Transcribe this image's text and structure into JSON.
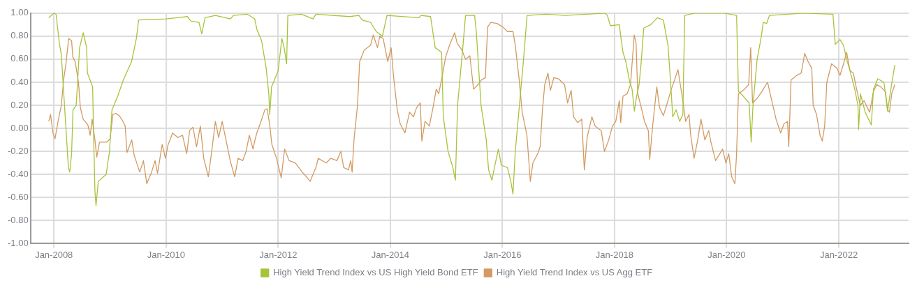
{
  "chart_data": {
    "type": "line",
    "x": [
      "2007-11-28",
      "2008-01-01",
      "2008-01-15",
      "2008-02-05",
      "2008-02-18",
      "2008-03-05",
      "2008-03-20",
      "2008-04-04",
      "2008-04-13",
      "2008-04-25",
      "2008-05-04",
      "2008-05-25",
      "2008-06-16",
      "2008-07-10",
      "2008-08-01",
      "2008-08-06",
      "2008-09-09",
      "2008-09-16",
      "2008-09-24",
      "2008-10-01",
      "2008-10-16",
      "2008-12-06",
      "2008-12-28",
      "2009-01-13",
      "2009-02-20",
      "2009-03-28",
      "2009-05-21",
      "2009-06-21",
      "2009-07-06",
      "2010-01-01",
      "2010-05-19",
      "2010-06-12",
      "2010-08-03",
      "2010-08-21",
      "2010-09-12",
      "2010-11-18",
      "2011-02-24",
      "2011-03-15",
      "2011-06-15",
      "2011-08-01",
      "2011-08-15",
      "2011-09-15",
      "2011-10-15",
      "2011-11-01",
      "2011-11-07",
      "2011-11-19",
      "2012-01-01",
      "2012-01-25",
      "2012-02-09",
      "2012-02-25",
      "2012-03-04",
      "2012-06-01",
      "2012-08-15",
      "2012-09-03",
      "2013-04-10",
      "2013-06-10",
      "2013-07-01",
      "2013-08-25",
      "2013-10-01",
      "2013-11-10",
      "2013-12-10",
      "2014-07-06",
      "2014-07-20",
      "2014-09-20",
      "2014-10-20",
      "2014-12-01",
      "2014-12-12",
      "2015-01-12",
      "2015-02-12",
      "2015-03-01",
      "2015-03-15",
      "2015-04-18",
      "2015-05-06",
      "2015-07-04",
      "2015-07-15",
      "2015-08-15",
      "2015-09-18",
      "2015-10-03",
      "2015-10-25",
      "2015-11-10",
      "2015-12-06",
      "2015-12-25",
      "2016-02-03",
      "2016-02-25",
      "2016-03-10",
      "2016-03-25",
      "2016-04-25",
      "2016-05-18",
      "2016-06-10",
      "2016-10-15",
      "2017-02-15",
      "2017-11-01",
      "2017-11-15",
      "2017-12-05",
      "2018-02-01",
      "2018-02-10",
      "2018-02-25",
      "2018-03-15",
      "2018-04-10",
      "2018-04-25",
      "2018-05-10",
      "2018-05-25",
      "2018-06-10",
      "2018-06-25",
      "2018-07-10",
      "2018-08-25",
      "2018-10-07",
      "2018-11-15",
      "2018-12-15",
      "2019-01-01",
      "2019-01-15",
      "2019-02-06",
      "2019-03-01",
      "2019-03-22",
      "2019-04-03",
      "2019-06-06",
      "2019-12-20",
      "2020-03-06",
      "2020-03-18",
      "2020-04-18",
      "2020-05-27",
      "2020-06-09",
      "2020-06-21",
      "2020-07-18",
      "2020-08-12",
      "2020-08-27",
      "2020-09-18",
      "2020-10-06",
      "2021-05-15",
      "2021-11-24",
      "2021-12-09",
      "2022-01-09",
      "2022-02-01",
      "2022-02-21",
      "2022-03-15",
      "2022-04-15",
      "2022-05-06",
      "2022-05-10",
      "2022-05-22",
      "2022-06-22",
      "2022-08-01",
      "2022-08-15",
      "2022-09-12",
      "2022-10-22",
      "2022-11-15",
      "2022-12-06",
      "2023-01-01"
    ],
    "series": [
      {
        "name": "High Yield Trend Index vs US High Yield Bond ETF",
        "color": "#a6c43a",
        "values": [
          0.96,
          1.0,
          0.99,
          0.74,
          0.64,
          0.3,
          -0.02,
          -0.34,
          -0.38,
          -0.22,
          0.16,
          0.2,
          0.7,
          0.83,
          0.7,
          0.48,
          0.36,
          -0.1,
          -0.54,
          -0.67,
          -0.46,
          -0.4,
          -0.2,
          0.16,
          0.28,
          0.42,
          0.58,
          0.78,
          0.94,
          0.95,
          0.97,
          0.93,
          0.92,
          0.82,
          0.96,
          0.98,
          0.95,
          0.98,
          0.99,
          0.95,
          0.86,
          0.76,
          0.52,
          0.3,
          0.12,
          0.36,
          0.5,
          0.78,
          0.7,
          0.56,
          0.98,
          0.99,
          0.95,
          0.99,
          0.97,
          0.98,
          0.94,
          0.92,
          0.84,
          0.8,
          0.98,
          0.96,
          0.98,
          0.97,
          0.7,
          0.66,
          0.1,
          -0.2,
          -0.34,
          -0.45,
          0.2,
          0.7,
          0.98,
          0.98,
          0.84,
          0.2,
          -0.1,
          -0.36,
          -0.45,
          -0.34,
          -0.18,
          -0.32,
          -0.34,
          -0.46,
          -0.57,
          -0.2,
          0.26,
          0.6,
          0.98,
          0.99,
          0.98,
          1.0,
          0.98,
          0.89,
          0.9,
          0.8,
          0.66,
          0.58,
          0.4,
          0.34,
          0.15,
          0.28,
          0.38,
          0.6,
          0.87,
          0.9,
          0.96,
          0.94,
          0.72,
          0.4,
          0.1,
          0.16,
          0.06,
          0.12,
          0.98,
          1.0,
          1.0,
          0.98,
          0.32,
          0.28,
          0.22,
          -0.12,
          0.2,
          0.6,
          0.78,
          0.92,
          0.91,
          0.98,
          1.0,
          0.99,
          0.73,
          0.77,
          0.72,
          0.6,
          0.5,
          0.34,
          0.2,
          -0.01,
          0.3,
          0.14,
          0.03,
          0.34,
          0.43,
          0.4,
          0.15,
          0.34,
          0.55
        ]
      },
      {
        "name": "High Yield Trend Index vs US Agg ETF",
        "color": "#d39a62",
        "x": [
          "2007-11-28",
          "2007-12-10",
          "2007-12-25",
          "2008-01-08",
          "2008-01-25",
          "2008-02-18",
          "2008-03-04",
          "2008-03-19",
          "2008-04-06",
          "2008-04-25",
          "2008-05-03",
          "2008-05-18",
          "2008-06-09",
          "2008-06-21",
          "2008-07-09",
          "2008-08-09",
          "2008-08-24",
          "2008-09-06",
          "2008-09-24",
          "2008-10-06",
          "2008-10-24",
          "2008-12-09",
          "2009-01-01",
          "2009-01-19",
          "2009-02-07",
          "2009-03-01",
          "2009-03-22",
          "2009-04-09",
          "2009-04-21",
          "2009-05-22",
          "2009-06-06",
          "2009-07-13",
          "2009-08-06",
          "2009-08-28",
          "2009-09-28",
          "2009-10-21",
          "2009-11-06",
          "2009-12-06",
          "2009-12-28",
          "2010-01-12",
          "2010-02-12",
          "2010-03-18",
          "2010-04-18",
          "2010-05-15",
          "2010-06-03",
          "2010-06-25",
          "2010-07-18",
          "2010-08-12",
          "2010-09-03",
          "2010-10-03",
          "2010-10-25",
          "2010-11-18",
          "2010-12-09",
          "2011-01-01",
          "2011-02-01",
          "2011-02-24",
          "2011-03-24",
          "2011-04-15",
          "2011-05-15",
          "2011-06-06",
          "2011-06-27",
          "2011-07-21",
          "2011-08-03",
          "2011-08-15",
          "2011-09-06",
          "2011-10-06",
          "2011-10-21",
          "2011-11-06",
          "2011-11-21",
          "2011-12-21",
          "2012-01-21",
          "2012-02-12",
          "2012-03-12",
          "2012-04-21",
          "2012-06-06",
          "2012-07-03",
          "2012-07-27",
          "2012-09-03",
          "2012-09-18",
          "2012-11-09",
          "2012-12-09",
          "2013-01-18",
          "2013-02-12",
          "2013-03-03",
          "2013-04-03",
          "2013-04-18",
          "2013-04-27",
          "2013-05-09",
          "2013-06-01",
          "2013-06-15",
          "2013-07-15",
          "2013-08-25",
          "2013-09-12",
          "2013-10-09",
          "2013-10-24",
          "2013-11-15",
          "2013-12-15",
          "2014-01-06",
          "2014-01-21",
          "2014-02-15",
          "2014-03-06",
          "2014-04-06",
          "2014-05-06",
          "2014-06-01",
          "2014-06-21",
          "2014-07-15",
          "2014-07-25",
          "2014-08-15",
          "2014-09-12",
          "2014-10-06",
          "2014-10-27",
          "2014-11-12",
          "2014-12-06",
          "2014-12-27",
          "2015-01-27",
          "2015-02-24",
          "2015-03-12",
          "2015-04-12",
          "2015-05-06",
          "2015-06-03",
          "2015-06-27",
          "2015-07-27",
          "2015-08-18",
          "2015-09-12",
          "2015-09-27",
          "2015-10-18",
          "2015-11-27",
          "2016-01-03",
          "2016-02-03",
          "2016-03-10",
          "2016-03-25",
          "2016-04-18",
          "2016-05-09",
          "2016-06-09",
          "2016-07-01",
          "2016-07-18",
          "2016-08-18",
          "2016-09-03",
          "2016-09-18",
          "2016-10-03",
          "2016-10-24",
          "2016-11-09",
          "2016-12-01",
          "2017-01-01",
          "2017-02-09",
          "2017-03-01",
          "2017-03-24",
          "2017-04-09",
          "2017-05-06",
          "2017-06-01",
          "2017-06-18",
          "2017-07-06",
          "2017-08-06",
          "2017-08-27",
          "2017-10-06",
          "2017-10-27",
          "2017-11-24",
          "2017-12-18",
          "2018-01-09",
          "2018-02-01",
          "2018-02-10",
          "2018-02-25",
          "2018-03-24",
          "2018-04-15",
          "2018-05-09",
          "2018-05-21",
          "2018-06-01",
          "2018-06-24",
          "2018-07-15",
          "2018-08-09",
          "2018-08-18",
          "2018-09-06",
          "2018-10-03",
          "2018-10-21",
          "2018-11-15",
          "2018-12-06",
          "2019-01-06",
          "2019-02-01",
          "2019-02-18",
          "2019-03-03",
          "2019-03-24",
          "2019-04-09",
          "2019-05-01",
          "2019-05-12",
          "2019-06-03",
          "2019-06-27",
          "2019-07-18",
          "2019-08-12",
          "2019-09-06",
          "2019-09-21",
          "2019-10-21",
          "2019-12-06",
          "2019-12-27",
          "2020-01-15",
          "2020-02-03",
          "2020-02-24",
          "2020-03-06",
          "2020-03-18",
          "2020-04-27",
          "2020-05-24",
          "2020-06-06",
          "2020-06-18",
          "2020-07-18",
          "2020-08-18",
          "2020-09-24",
          "2020-10-18",
          "2020-11-18",
          "2020-12-18",
          "2021-01-09",
          "2021-02-01",
          "2021-02-09",
          "2021-02-24",
          "2021-04-03",
          "2021-05-01",
          "2021-05-24",
          "2021-06-15",
          "2021-07-09",
          "2021-07-18",
          "2021-08-09",
          "2021-09-01",
          "2021-09-15",
          "2021-10-01",
          "2021-10-15",
          "2021-11-15",
          "2021-12-21",
          "2022-01-09",
          "2022-02-01",
          "2022-02-21",
          "2022-03-15",
          "2022-04-06",
          "2022-04-27",
          "2022-05-21",
          "2022-06-15",
          "2022-07-06",
          "2022-07-21",
          "2022-08-15",
          "2022-09-06",
          "2022-10-01",
          "2022-11-01",
          "2022-11-15",
          "2022-11-27",
          "2022-12-12",
          "2023-01-01"
        ],
        "values": [
          0.06,
          0.12,
          -0.04,
          -0.09,
          0.04,
          0.2,
          0.42,
          0.56,
          0.78,
          0.76,
          0.62,
          0.58,
          0.4,
          0.18,
          0.08,
          0.03,
          -0.06,
          0.08,
          -0.1,
          -0.25,
          -0.12,
          -0.12,
          -0.09,
          0.12,
          0.13,
          0.11,
          0.07,
          0.02,
          -0.21,
          -0.1,
          -0.23,
          -0.38,
          -0.28,
          -0.48,
          -0.38,
          -0.28,
          -0.39,
          -0.14,
          -0.26,
          -0.15,
          -0.04,
          -0.08,
          -0.06,
          -0.22,
          -0.02,
          0.01,
          -0.16,
          0.02,
          -0.26,
          -0.42,
          -0.2,
          0.06,
          -0.08,
          0.06,
          -0.14,
          -0.29,
          -0.42,
          -0.26,
          -0.28,
          -0.2,
          -0.06,
          -0.18,
          -0.1,
          -0.04,
          0.04,
          0.16,
          0.17,
          0.04,
          -0.14,
          -0.26,
          -0.43,
          -0.18,
          -0.28,
          -0.3,
          -0.38,
          -0.42,
          -0.46,
          -0.34,
          -0.26,
          -0.3,
          -0.26,
          -0.28,
          -0.2,
          -0.34,
          -0.36,
          -0.28,
          -0.38,
          -0.1,
          0.2,
          0.58,
          0.68,
          0.72,
          0.81,
          0.7,
          0.8,
          0.78,
          0.58,
          0.7,
          0.46,
          0.16,
          0.04,
          -0.04,
          0.14,
          0.1,
          0.18,
          0.22,
          -0.11,
          0.06,
          0.02,
          0.18,
          0.34,
          0.3,
          0.46,
          0.62,
          0.74,
          0.83,
          0.74,
          0.68,
          0.6,
          0.63,
          0.34,
          0.38,
          0.42,
          0.44,
          0.88,
          0.92,
          0.91,
          0.88,
          0.84,
          0.84,
          0.72,
          0.44,
          0.14,
          -0.06,
          -0.46,
          -0.3,
          -0.22,
          -0.16,
          0.16,
          0.38,
          0.48,
          0.33,
          0.44,
          0.43,
          0.38,
          0.22,
          0.33,
          0.1,
          0.05,
          0.08,
          -0.36,
          -0.08,
          0.1,
          0.02,
          -0.02,
          -0.2,
          -0.1,
          0.02,
          0.06,
          0.24,
          0.05,
          0.28,
          0.3,
          0.38,
          0.81,
          0.74,
          0.3,
          0.18,
          0.06,
          -0.02,
          -0.27,
          0.02,
          0.36,
          0.18,
          0.11,
          0.2,
          0.34,
          0.44,
          0.51,
          0.4,
          0.22,
          0.06,
          0.12,
          -0.06,
          -0.26,
          -0.1,
          0.08,
          -0.1,
          -0.02,
          -0.12,
          -0.28,
          -0.18,
          -0.3,
          -0.22,
          -0.42,
          -0.48,
          -0.22,
          0.3,
          0.34,
          0.38,
          0.7,
          0.22,
          0.26,
          0.32,
          0.4,
          0.26,
          0.08,
          -0.04,
          0.04,
          0.06,
          -0.16,
          0.42,
          0.46,
          0.48,
          0.65,
          0.58,
          0.52,
          0.2,
          0.12,
          -0.06,
          -0.11,
          0.02,
          0.4,
          0.56,
          0.52,
          0.46,
          0.56,
          0.66,
          0.5,
          0.48,
          0.34,
          0.2,
          0.24,
          0.18,
          0.14,
          0.32,
          0.38,
          0.36,
          0.32,
          0.16,
          0.14,
          0.3,
          0.38
        ]
      }
    ],
    "xlim": [
      "2007-08-01",
      "2023-04-01"
    ],
    "xticks": [
      {
        "value": "2008-01-01",
        "label": "Jan-2008"
      },
      {
        "value": "2010-01-01",
        "label": "Jan-2010"
      },
      {
        "value": "2012-01-01",
        "label": "Jan-2012"
      },
      {
        "value": "2014-01-01",
        "label": "Jan-2014"
      },
      {
        "value": "2016-01-01",
        "label": "Jan-2016"
      },
      {
        "value": "2018-01-01",
        "label": "Jan-2018"
      },
      {
        "value": "2020-01-01",
        "label": "Jan-2020"
      },
      {
        "value": "2022-01-01",
        "label": "Jan-2022"
      }
    ],
    "ylim": [
      -1,
      1
    ],
    "yticks": [
      {
        "value": 1,
        "label": "1.00"
      },
      {
        "value": 0.8,
        "label": "0.80"
      },
      {
        "value": 0.6,
        "label": "0.60"
      },
      {
        "value": 0.4,
        "label": "0.40"
      },
      {
        "value": 0.2,
        "label": "0.20"
      },
      {
        "value": 0,
        "label": "0.00"
      },
      {
        "value": -0.2,
        "label": "-0.20"
      },
      {
        "value": -0.4,
        "label": "-0.40"
      },
      {
        "value": -0.6,
        "label": "-0.60"
      },
      {
        "value": -0.8,
        "label": "-0.80"
      },
      {
        "value": -1,
        "label": "-1.00"
      }
    ],
    "grid": true,
    "legend": "bottom",
    "marker": "none",
    "line_style": "solid"
  }
}
